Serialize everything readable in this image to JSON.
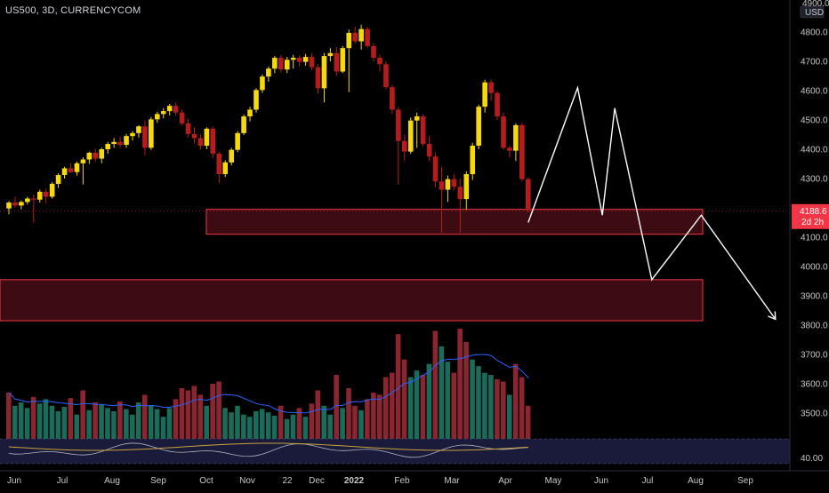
{
  "header": {
    "symbol": "US500, 3D, CURRENCYCOM"
  },
  "price_scale": {
    "unit_label": "USD",
    "top_label": "4900.0"
  },
  "current_price": {
    "value": "4188.6",
    "countdown": "2d 2h",
    "tag_color": "#f23645"
  },
  "colors": {
    "background": "#000000",
    "bull_candle": "#f5d90a",
    "bear_candle": "#b71c1c",
    "volume_up": "#1b6b5a",
    "volume_down": "#8b2530",
    "volume_ma": "#2962ff",
    "zone_fill": "#3d0b12",
    "zone_border": "#f23645",
    "projection": "#ffffff",
    "rsi_line": "#b2b5be",
    "rsi_signal": "#c9a33a",
    "rsi_band": "#1a1a3a"
  },
  "chart_data": {
    "type": "candlestick",
    "title": "US500, 3D, CURRENCYCOM",
    "y_axis": {
      "ticks": [
        4800,
        4700,
        4600,
        4500,
        4400,
        4300,
        4100,
        4000,
        3900,
        3800,
        3700,
        3600,
        3500
      ],
      "range": [
        3500,
        4900
      ]
    },
    "x_axis": {
      "ticks": [
        "Jun",
        "Jul",
        "Aug",
        "Sep",
        "Oct",
        "Nov",
        "22",
        "Dec",
        "2022",
        "Feb",
        "Mar",
        "Apr",
        "May",
        "Jun",
        "Jul",
        "Aug",
        "Sep"
      ]
    },
    "candles": [
      [
        4198,
        4223,
        4178,
        4218
      ],
      [
        4218,
        4238,
        4200,
        4208
      ],
      [
        4208,
        4225,
        4195,
        4220
      ],
      [
        4220,
        4238,
        4212,
        4232
      ],
      [
        4232,
        4245,
        4150,
        4228
      ],
      [
        4228,
        4262,
        4218,
        4255
      ],
      [
        4255,
        4265,
        4215,
        4238
      ],
      [
        4238,
        4288,
        4232,
        4282
      ],
      [
        4282,
        4318,
        4268,
        4312
      ],
      [
        4312,
        4340,
        4300,
        4335
      ],
      [
        4335,
        4352,
        4318,
        4322
      ],
      [
        4322,
        4358,
        4310,
        4352
      ],
      [
        4352,
        4372,
        4280,
        4365
      ],
      [
        4365,
        4392,
        4350,
        4388
      ],
      [
        4388,
        4402,
        4358,
        4368
      ],
      [
        4368,
        4405,
        4352,
        4400
      ],
      [
        4400,
        4425,
        4385,
        4418
      ],
      [
        4418,
        4438,
        4405,
        4425
      ],
      [
        4425,
        4442,
        4405,
        4415
      ],
      [
        4415,
        4452,
        4405,
        4445
      ],
      [
        4445,
        4462,
        4430,
        4455
      ],
      [
        4455,
        4482,
        4440,
        4478
      ],
      [
        4478,
        4498,
        4380,
        4405
      ],
      [
        4405,
        4510,
        4398,
        4502
      ],
      [
        4502,
        4528,
        4490,
        4520
      ],
      [
        4520,
        4540,
        4505,
        4530
      ],
      [
        4530,
        4555,
        4515,
        4548
      ],
      [
        4548,
        4560,
        4515,
        4525
      ],
      [
        4525,
        4535,
        4480,
        4488
      ],
      [
        4488,
        4505,
        4440,
        4452
      ],
      [
        4452,
        4475,
        4420,
        4438
      ],
      [
        4438,
        4450,
        4398,
        4412
      ],
      [
        4412,
        4475,
        4400,
        4470
      ],
      [
        4470,
        4478,
        4370,
        4385
      ],
      [
        4385,
        4392,
        4285,
        4315
      ],
      [
        4315,
        4362,
        4305,
        4355
      ],
      [
        4355,
        4405,
        4345,
        4398
      ],
      [
        4398,
        4462,
        4390,
        4455
      ],
      [
        4455,
        4518,
        4448,
        4512
      ],
      [
        4512,
        4545,
        4495,
        4535
      ],
      [
        4535,
        4608,
        4525,
        4602
      ],
      [
        4602,
        4655,
        4592,
        4648
      ],
      [
        4648,
        4682,
        4630,
        4675
      ],
      [
        4675,
        4718,
        4660,
        4712
      ],
      [
        4712,
        4722,
        4662,
        4672
      ],
      [
        4672,
        4715,
        4660,
        4705
      ],
      [
        4705,
        4722,
        4675,
        4712
      ],
      [
        4712,
        4720,
        4682,
        4698
      ],
      [
        4698,
        4725,
        4685,
        4715
      ],
      [
        4715,
        4728,
        4670,
        4680
      ],
      [
        4680,
        4690,
        4590,
        4608
      ],
      [
        4608,
        4728,
        4560,
        4718
      ],
      [
        4718,
        4745,
        4700,
        4728
      ],
      [
        4728,
        4748,
        4650,
        4665
      ],
      [
        4665,
        4752,
        4660,
        4745
      ],
      [
        4745,
        4808,
        4595,
        4797
      ],
      [
        4797,
        4818,
        4760,
        4768
      ],
      [
        4768,
        4825,
        4740,
        4810
      ],
      [
        4810,
        4818,
        4745,
        4752
      ],
      [
        4752,
        4762,
        4700,
        4712
      ],
      [
        4712,
        4722,
        4665,
        4690
      ],
      [
        4690,
        4700,
        4605,
        4612
      ],
      [
        4612,
        4620,
        4520,
        4535
      ],
      [
        4535,
        4545,
        4280,
        4428
      ],
      [
        4428,
        4450,
        4360,
        4392
      ],
      [
        4392,
        4508,
        4385,
        4498
      ],
      [
        4498,
        4525,
        4405,
        4512
      ],
      [
        4512,
        4520,
        4410,
        4418
      ],
      [
        4418,
        4445,
        4360,
        4375
      ],
      [
        4375,
        4390,
        4270,
        4290
      ],
      [
        4290,
        4340,
        4115,
        4262
      ],
      [
        4262,
        4310,
        4220,
        4298
      ],
      [
        4298,
        4315,
        4260,
        4272
      ],
      [
        4272,
        4300,
        4115,
        4230
      ],
      [
        4230,
        4325,
        4195,
        4315
      ],
      [
        4315,
        4422,
        4295,
        4412
      ],
      [
        4412,
        4552,
        4400,
        4545
      ],
      [
        4545,
        4637,
        4525,
        4628
      ],
      [
        4628,
        4637,
        4565,
        4592
      ],
      [
        4592,
        4598,
        4500,
        4512
      ],
      [
        4512,
        4525,
        4398,
        4405
      ],
      [
        4405,
        4412,
        4372,
        4395
      ],
      [
        4395,
        4488,
        4360,
        4482
      ],
      [
        4482,
        4490,
        4290,
        4298
      ],
      [
        4298,
        4305,
        4185,
        4192
      ]
    ],
    "volumes": [
      {
        "v": 0.42,
        "up": false
      },
      {
        "v": 0.3,
        "up": true
      },
      {
        "v": 0.33,
        "up": true
      },
      {
        "v": 0.28,
        "up": true
      },
      {
        "v": 0.38,
        "up": false
      },
      {
        "v": 0.32,
        "up": true
      },
      {
        "v": 0.36,
        "up": true
      },
      {
        "v": 0.3,
        "up": true
      },
      {
        "v": 0.25,
        "up": true
      },
      {
        "v": 0.29,
        "up": true
      },
      {
        "v": 0.37,
        "up": false
      },
      {
        "v": 0.22,
        "up": true
      },
      {
        "v": 0.44,
        "up": false
      },
      {
        "v": 0.26,
        "up": true
      },
      {
        "v": 0.33,
        "up": false
      },
      {
        "v": 0.31,
        "up": true
      },
      {
        "v": 0.28,
        "up": true
      },
      {
        "v": 0.25,
        "up": true
      },
      {
        "v": 0.34,
        "up": false
      },
      {
        "v": 0.27,
        "up": true
      },
      {
        "v": 0.22,
        "up": true
      },
      {
        "v": 0.33,
        "up": true
      },
      {
        "v": 0.4,
        "up": false
      },
      {
        "v": 0.3,
        "up": true
      },
      {
        "v": 0.27,
        "up": true
      },
      {
        "v": 0.2,
        "up": true
      },
      {
        "v": 0.28,
        "up": true
      },
      {
        "v": 0.36,
        "up": false
      },
      {
        "v": 0.46,
        "up": false
      },
      {
        "v": 0.44,
        "up": false
      },
      {
        "v": 0.48,
        "up": false
      },
      {
        "v": 0.4,
        "up": false
      },
      {
        "v": 0.3,
        "up": true
      },
      {
        "v": 0.5,
        "up": false
      },
      {
        "v": 0.52,
        "up": false
      },
      {
        "v": 0.28,
        "up": true
      },
      {
        "v": 0.24,
        "up": true
      },
      {
        "v": 0.3,
        "up": true
      },
      {
        "v": 0.22,
        "up": true
      },
      {
        "v": 0.2,
        "up": true
      },
      {
        "v": 0.25,
        "up": true
      },
      {
        "v": 0.27,
        "up": true
      },
      {
        "v": 0.24,
        "up": true
      },
      {
        "v": 0.21,
        "up": true
      },
      {
        "v": 0.3,
        "up": false
      },
      {
        "v": 0.18,
        "up": true
      },
      {
        "v": 0.22,
        "up": true
      },
      {
        "v": 0.28,
        "up": false
      },
      {
        "v": 0.2,
        "up": true
      },
      {
        "v": 0.32,
        "up": false
      },
      {
        "v": 0.44,
        "up": false
      },
      {
        "v": 0.3,
        "up": true
      },
      {
        "v": 0.22,
        "up": true
      },
      {
        "v": 0.58,
        "up": false
      },
      {
        "v": 0.28,
        "up": true
      },
      {
        "v": 0.46,
        "up": false
      },
      {
        "v": 0.3,
        "up": false
      },
      {
        "v": 0.26,
        "up": true
      },
      {
        "v": 0.36,
        "up": false
      },
      {
        "v": 0.42,
        "up": false
      },
      {
        "v": 0.4,
        "up": false
      },
      {
        "v": 0.56,
        "up": false
      },
      {
        "v": 0.6,
        "up": false
      },
      {
        "v": 0.95,
        "up": false
      },
      {
        "v": 0.72,
        "up": false
      },
      {
        "v": 0.56,
        "up": true
      },
      {
        "v": 0.62,
        "up": true
      },
      {
        "v": 0.58,
        "up": false
      },
      {
        "v": 0.68,
        "up": true
      },
      {
        "v": 0.98,
        "up": false
      },
      {
        "v": 0.84,
        "up": true
      },
      {
        "v": 0.7,
        "up": true
      },
      {
        "v": 0.6,
        "up": false
      },
      {
        "v": 1.0,
        "up": false
      },
      {
        "v": 0.88,
        "up": false
      },
      {
        "v": 0.72,
        "up": true
      },
      {
        "v": 0.66,
        "up": true
      },
      {
        "v": 0.6,
        "up": true
      },
      {
        "v": 0.58,
        "up": true
      },
      {
        "v": 0.54,
        "up": false
      },
      {
        "v": 0.52,
        "up": false
      },
      {
        "v": 0.4,
        "up": true
      },
      {
        "v": 0.68,
        "up": false
      },
      {
        "v": 0.56,
        "up": false
      },
      {
        "v": 0.3,
        "up": false
      }
    ],
    "zones": [
      {
        "low": 4110,
        "high": 4195,
        "from_index": 38,
        "to_extend": 1.0
      },
      {
        "low": 3815,
        "high": 3955,
        "from_index": 0,
        "to_extend": 1.0
      }
    ],
    "projection_path": [
      {
        "i": 84,
        "p": 4150
      },
      {
        "i": 92,
        "p": 4610
      },
      {
        "i": 96,
        "p": 4175
      },
      {
        "i": 98,
        "p": 4540
      },
      {
        "i": 104,
        "p": 3955
      },
      {
        "i": 112,
        "p": 4175
      },
      {
        "i": 124,
        "p": 3820
      }
    ],
    "rsi_reference": "40.00"
  }
}
